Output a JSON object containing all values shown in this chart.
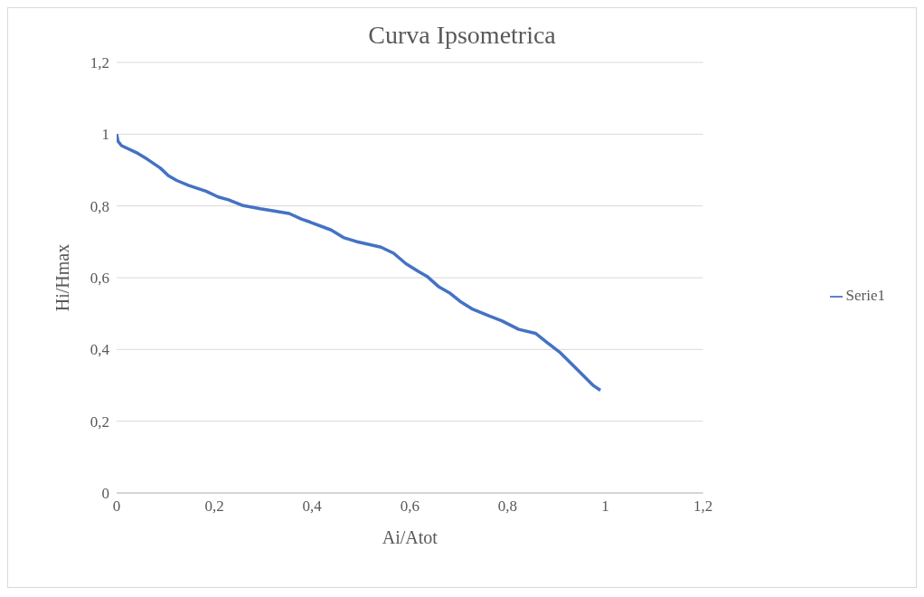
{
  "chart_data": {
    "type": "line",
    "title": "Curva Ipsometrica",
    "xlabel": "Ai/Atot",
    "ylabel": "Hi/Hmax",
    "xlim": [
      0,
      1.2
    ],
    "xticks": [
      {
        "value": 0,
        "label": "0"
      },
      {
        "value": 0.2,
        "label": "0,2"
      },
      {
        "value": 0.4,
        "label": "0,4"
      },
      {
        "value": 0.6,
        "label": "0,6"
      },
      {
        "value": 0.8,
        "label": "0,8"
      },
      {
        "value": 1,
        "label": "1"
      },
      {
        "value": 1.2,
        "label": "1,2"
      }
    ],
    "ylim": [
      0,
      1.2
    ],
    "yticks": [
      {
        "value": 0,
        "label": "0"
      },
      {
        "value": 0.2,
        "label": "0,2"
      },
      {
        "value": 0.4,
        "label": "0,4"
      },
      {
        "value": 0.6,
        "label": "0,6"
      },
      {
        "value": 0.8,
        "label": "0,8"
      },
      {
        "value": 1,
        "label": "1"
      },
      {
        "value": 1.2,
        "label": "1,2"
      }
    ],
    "grid": "y",
    "legend": "right",
    "marker": "none",
    "line_style": "solid",
    "x": [
      0,
      0.003,
      0.01,
      0.04,
      0.063,
      0.089,
      0.106,
      0.123,
      0.148,
      0.183,
      0.208,
      0.229,
      0.259,
      0.294,
      0.353,
      0.379,
      0.396,
      0.439,
      0.464,
      0.49,
      0.541,
      0.567,
      0.592,
      0.618,
      0.635,
      0.66,
      0.681,
      0.703,
      0.729,
      0.763,
      0.788,
      0.823,
      0.857,
      0.882,
      0.908,
      0.93,
      0.956,
      0.976,
      0.99
    ],
    "series": [
      {
        "name": "Serie1",
        "color": "#4472c4",
        "values": [
          1.0,
          0.98,
          0.968,
          0.949,
          0.93,
          0.906,
          0.884,
          0.871,
          0.857,
          0.841,
          0.825,
          0.817,
          0.801,
          0.792,
          0.779,
          0.763,
          0.755,
          0.733,
          0.712,
          0.701,
          0.685,
          0.668,
          0.639,
          0.617,
          0.604,
          0.574,
          0.558,
          0.534,
          0.512,
          0.493,
          0.48,
          0.456,
          0.445,
          0.418,
          0.391,
          0.361,
          0.326,
          0.299,
          0.286
        ]
      }
    ]
  }
}
